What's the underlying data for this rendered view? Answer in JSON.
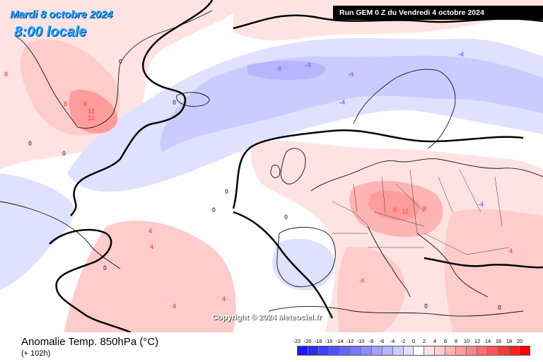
{
  "header": {
    "date": "Mardi 8 octobre 2024",
    "time": "8:00 locale",
    "run": "Run GEM 0 Z du Vendredi 4 octobre 2024"
  },
  "copyright": "Copyright © 2024 Meteociel.fr",
  "footer": {
    "title": "Anomalie Temp. 850hPa (°C)",
    "subtitle": "(+ 102h)"
  },
  "legend": {
    "ticks": [
      "-22",
      "-20",
      "-18",
      "-16",
      "-14",
      "-12",
      "-10",
      "-8",
      "-6",
      "-4",
      "-2",
      "0",
      "2",
      "4",
      "6",
      "8",
      "10",
      "12",
      "14",
      "16",
      "18",
      "20"
    ],
    "colors": [
      "#1a1aff",
      "#2c2cff",
      "#3f3fff",
      "#5151ff",
      "#6464ff",
      "#7777ff",
      "#8c8cff",
      "#a1a1ff",
      "#b6b6ff",
      "#cbcbff",
      "#e0e0ff",
      "#ffffff",
      "#ffe3e3",
      "#ffcccc",
      "#ffb4b4",
      "#ff9c9c",
      "#ff8585",
      "#ff6d6d",
      "#ff5555",
      "#ff3b3b",
      "#ff2020",
      "#ff0000"
    ]
  },
  "map_labels": [
    {
      "text": "8",
      "color": "#ff5555"
    },
    {
      "text": "8",
      "color": "#ff5555"
    },
    {
      "text": "8",
      "color": "#ff5555"
    },
    {
      "text": "12",
      "color": "#ff5555"
    },
    {
      "text": "12",
      "color": "#ff5555"
    },
    {
      "text": "-8",
      "color": "#7777ff"
    },
    {
      "text": "-8",
      "color": "#7777ff"
    },
    {
      "text": "-4",
      "color": "#7777ff"
    },
    {
      "text": "-4",
      "color": "#7777ff"
    },
    {
      "text": "-4",
      "color": "#7777ff"
    },
    {
      "text": "-4",
      "color": "#7777ff"
    },
    {
      "text": "4",
      "color": "#ff5555"
    },
    {
      "text": "4",
      "color": "#ff5555"
    },
    {
      "text": "4",
      "color": "#ff5555"
    },
    {
      "text": "4",
      "color": "#ff5555"
    },
    {
      "text": "4",
      "color": "#ff5555"
    },
    {
      "text": "4",
      "color": "#ff5555"
    },
    {
      "text": "8",
      "color": "#ff5555"
    },
    {
      "text": "8",
      "color": "#ff5555"
    },
    {
      "text": "12",
      "color": "#ff5555"
    },
    {
      "text": "0",
      "color": "#555555"
    },
    {
      "text": "0",
      "color": "#555555"
    },
    {
      "text": "0",
      "color": "#555555"
    },
    {
      "text": "0",
      "color": "#555555"
    },
    {
      "text": "0",
      "color": "#555555"
    },
    {
      "text": "0",
      "color": "#555555"
    },
    {
      "text": "0",
      "color": "#555555"
    },
    {
      "text": "0",
      "color": "#555555"
    },
    {
      "text": "0",
      "color": "#555555"
    },
    {
      "text": "0",
      "color": "#555555"
    }
  ]
}
